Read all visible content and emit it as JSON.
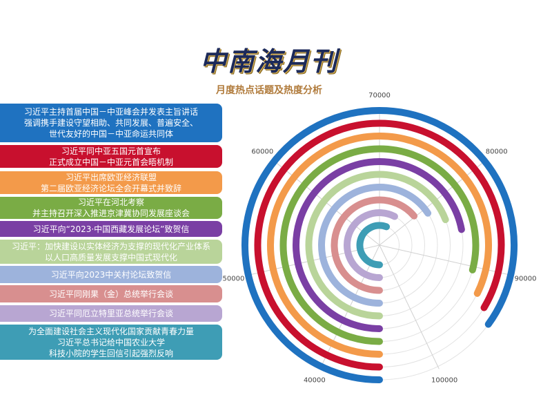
{
  "chart_data": {
    "type": "radial-bar",
    "title": "中南海月刊",
    "subtitle": "月度热点话题及热度分析",
    "categories": [
      "习近平主持首届中国－中亚峰会并发表主旨讲话\n强调携手建设守望相助、共同发展、普遍安全、\n世代友好的中国－中亚命运共同体",
      "习近平同中亚五国元首宣布\n正式成立中国－中亚元首会晤机制",
      "习近平出席欧亚经济联盟\n第二届欧亚经济论坛全会开幕式并致辞",
      "习近平在河北考察\n并主持召开深入推进京津冀协同发展座谈会",
      "习近平向“2023·中国西藏发展论坛”致贺信",
      "习近平：加快建设以实体经济为支撑的现代化产业体系\n以人口高质量发展支撑中国式现代化",
      "习近平向2023中关村论坛致贺信",
      "习近平同刚果（金）总统举行会谈",
      "习近平同厄立特里亚总统举行会谈",
      "为全面建设社会主义现代化国家贡献青春力量\n习近平总书记给中国农业大学\n科技小院的学生回信引起强烈反响"
    ],
    "values": [
      94500,
      93500,
      92600,
      90400,
      85400,
      83400,
      81000,
      79700,
      75400,
      74000
    ],
    "colors": [
      "#1f72c0",
      "#c8102e",
      "#f39a4a",
      "#7aac45",
      "#7a3fa4",
      "#b9d49a",
      "#9db3dc",
      "#d88f8f",
      "#b8a6d2",
      "#3e9db5"
    ],
    "xlim": [
      35000,
      105000
    ],
    "xticks": [
      40000,
      50000,
      60000,
      70000,
      80000,
      90000,
      100000
    ]
  }
}
